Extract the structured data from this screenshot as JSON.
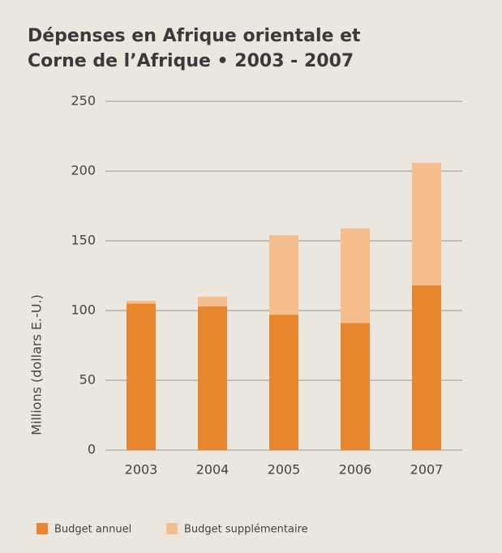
{
  "chart_data": {
    "type": "stacked_bar",
    "title": [
      "Dépenses en Afrique orientale et",
      "Corne de l’Afrique  • 2003 - 2007"
    ],
    "y_label": "Millions (dollars E.-U.)",
    "categories": [
      "2003",
      "2004",
      "2005",
      "2006",
      "2007"
    ],
    "series": [
      {
        "name": "Budget annuel",
        "color": "#e8862f",
        "values": [
          105,
          103,
          97,
          91,
          118
        ]
      },
      {
        "name": "Budget supplémentaire",
        "color": "#f4bf8d",
        "values": [
          2,
          7,
          57,
          68,
          88
        ]
      }
    ],
    "ylim": [
      0,
      250
    ],
    "yticks": [
      0,
      50,
      100,
      150,
      200,
      250
    ],
    "grid": true,
    "legend": "bottom"
  }
}
